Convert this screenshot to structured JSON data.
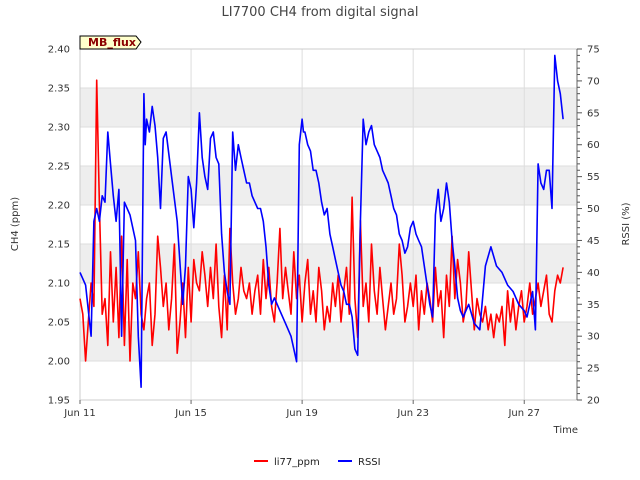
{
  "chart_data": {
    "type": "line",
    "title": "LI7700 CH4 from digital signal",
    "tag": "MB_flux",
    "xlabel": "Time",
    "ylabel_left": "CH4 (ppm)",
    "ylabel_right": "RSSI (%)",
    "x_ticks": [
      "Jun 11",
      "Jun 15",
      "Jun 19",
      "Jun 23",
      "Jun 27"
    ],
    "x_tick_days": [
      11,
      15,
      19,
      23,
      27
    ],
    "xlim": [
      11.0,
      28.9
    ],
    "ylim_left": [
      1.95,
      2.4
    ],
    "ylim_right": [
      20,
      75
    ],
    "y_ticks_left": [
      "1.95",
      "2.00",
      "2.05",
      "2.10",
      "2.15",
      "2.20",
      "2.25",
      "2.30",
      "2.35",
      "2.40"
    ],
    "y_ticks_right": [
      "20",
      "25",
      "30",
      "35",
      "40",
      "45",
      "50",
      "55",
      "60",
      "65",
      "70",
      "75"
    ],
    "grid": true,
    "legend_position": "bottom",
    "series": [
      {
        "name": "li77_ppm",
        "axis": "left",
        "color": "#ff0000",
        "x": [
          11.0,
          11.1,
          11.2,
          11.3,
          11.4,
          11.5,
          11.6,
          11.7,
          11.8,
          11.9,
          12.0,
          12.1,
          12.2,
          12.3,
          12.4,
          12.5,
          12.6,
          12.7,
          12.8,
          12.9,
          13.0,
          13.1,
          13.2,
          13.3,
          13.4,
          13.5,
          13.6,
          13.7,
          13.8,
          13.9,
          14.0,
          14.1,
          14.2,
          14.3,
          14.4,
          14.5,
          14.6,
          14.7,
          14.8,
          14.9,
          15.0,
          15.1,
          15.2,
          15.3,
          15.4,
          15.5,
          15.6,
          15.7,
          15.8,
          15.9,
          16.0,
          16.1,
          16.2,
          16.3,
          16.4,
          16.5,
          16.6,
          16.7,
          16.8,
          16.9,
          17.0,
          17.1,
          17.2,
          17.3,
          17.4,
          17.5,
          17.6,
          17.7,
          17.8,
          17.9,
          18.0,
          18.1,
          18.2,
          18.3,
          18.4,
          18.5,
          18.6,
          18.7,
          18.8,
          18.9,
          19.0,
          19.1,
          19.2,
          19.3,
          19.4,
          19.5,
          19.6,
          19.7,
          19.8,
          19.9,
          20.0,
          20.1,
          20.2,
          20.3,
          20.4,
          20.5,
          20.6,
          20.7,
          20.8,
          20.9,
          21.0,
          21.1,
          21.2,
          21.3,
          21.4,
          21.5,
          21.6,
          21.7,
          21.8,
          21.9,
          22.0,
          22.1,
          22.2,
          22.3,
          22.4,
          22.5,
          22.6,
          22.7,
          22.8,
          22.9,
          23.0,
          23.1,
          23.2,
          23.3,
          23.4,
          23.5,
          23.6,
          23.7,
          23.8,
          23.9,
          24.0,
          24.1,
          24.2,
          24.3,
          24.4,
          24.5,
          24.6,
          24.7,
          24.8,
          24.9,
          25.0,
          25.1,
          25.2,
          25.3,
          25.4,
          25.5,
          25.6,
          25.7,
          25.8,
          25.9,
          26.0,
          26.1,
          26.2,
          26.3,
          26.4,
          26.5,
          26.6,
          26.7,
          26.8,
          26.9,
          27.0,
          27.1,
          27.2,
          27.3,
          27.4,
          27.5,
          27.6,
          27.7,
          27.8,
          27.9,
          28.0,
          28.1,
          28.2,
          28.3,
          28.4
        ],
        "values": [
          2.08,
          2.06,
          2.0,
          2.05,
          2.1,
          2.07,
          2.36,
          2.2,
          2.06,
          2.08,
          2.02,
          2.14,
          2.05,
          2.12,
          2.03,
          2.16,
          2.02,
          2.13,
          2.0,
          2.1,
          2.08,
          2.14,
          2.06,
          2.04,
          2.08,
          2.1,
          2.02,
          2.06,
          2.16,
          2.12,
          2.07,
          2.1,
          2.04,
          2.08,
          2.15,
          2.01,
          2.05,
          2.1,
          2.03,
          2.12,
          2.05,
          2.13,
          2.1,
          2.09,
          2.14,
          2.11,
          2.07,
          2.12,
          2.08,
          2.15,
          2.07,
          2.03,
          2.11,
          2.04,
          2.17,
          2.1,
          2.06,
          2.08,
          2.12,
          2.09,
          2.08,
          2.1,
          2.06,
          2.09,
          2.11,
          2.06,
          2.13,
          2.08,
          2.12,
          2.07,
          2.05,
          2.1,
          2.17,
          2.08,
          2.12,
          2.09,
          2.06,
          2.14,
          2.08,
          2.11,
          2.05,
          2.1,
          2.13,
          2.06,
          2.09,
          2.05,
          2.12,
          2.09,
          2.04,
          2.07,
          2.05,
          2.1,
          2.07,
          2.11,
          2.05,
          2.09,
          2.12,
          2.06,
          2.21,
          2.08,
          2.03,
          2.18,
          2.07,
          2.1,
          2.05,
          2.15,
          2.09,
          2.06,
          2.12,
          2.08,
          2.04,
          2.07,
          2.1,
          2.06,
          2.08,
          2.15,
          2.11,
          2.05,
          2.07,
          2.1,
          2.07,
          2.11,
          2.04,
          2.09,
          2.06,
          2.1,
          2.08,
          2.05,
          2.12,
          2.07,
          2.09,
          2.03,
          2.11,
          2.07,
          2.16,
          2.08,
          2.13,
          2.1,
          2.05,
          2.07,
          2.14,
          2.09,
          2.04,
          2.08,
          2.06,
          2.05,
          2.07,
          2.04,
          2.06,
          2.03,
          2.06,
          2.05,
          2.07,
          2.02,
          2.09,
          2.05,
          2.08,
          2.04,
          2.07,
          2.09,
          2.05,
          2.07,
          2.1,
          2.06,
          2.08,
          2.1,
          2.07,
          2.09,
          2.11,
          2.06,
          2.05,
          2.09,
          2.11,
          2.1,
          2.12
        ]
      },
      {
        "name": "RSSI",
        "axis": "right",
        "color": "#0000ff",
        "x": [
          11.0,
          11.2,
          11.4,
          11.5,
          11.6,
          11.7,
          11.8,
          11.9,
          12.0,
          12.1,
          12.2,
          12.3,
          12.4,
          12.5,
          12.6,
          12.8,
          13.0,
          13.1,
          13.2,
          13.3,
          13.35,
          13.4,
          13.5,
          13.6,
          13.7,
          13.8,
          13.9,
          14.0,
          14.1,
          14.3,
          14.5,
          14.7,
          14.8,
          14.9,
          15.0,
          15.1,
          15.2,
          15.3,
          15.4,
          15.5,
          15.6,
          15.7,
          15.8,
          15.9,
          16.0,
          16.1,
          16.2,
          16.3,
          16.4,
          16.5,
          16.6,
          16.7,
          16.8,
          16.9,
          17.0,
          17.1,
          17.2,
          17.3,
          17.4,
          17.5,
          17.6,
          17.7,
          17.8,
          17.9,
          18.0,
          18.2,
          18.4,
          18.6,
          18.8,
          18.9,
          19.0,
          19.05,
          19.1,
          19.2,
          19.3,
          19.4,
          19.5,
          19.6,
          19.7,
          19.8,
          19.9,
          20.0,
          20.1,
          20.2,
          20.3,
          20.4,
          20.5,
          20.6,
          20.7,
          20.8,
          20.9,
          21.0,
          21.1,
          21.2,
          21.3,
          21.4,
          21.5,
          21.6,
          21.7,
          21.8,
          21.9,
          22.0,
          22.1,
          22.2,
          22.3,
          22.4,
          22.5,
          22.6,
          22.7,
          22.8,
          22.9,
          23.0,
          23.1,
          23.2,
          23.3,
          23.4,
          23.5,
          23.6,
          23.7,
          23.8,
          23.9,
          24.0,
          24.1,
          24.2,
          24.3,
          24.4,
          24.5,
          24.6,
          24.7,
          24.8,
          24.9,
          25.0,
          25.2,
          25.4,
          25.6,
          25.8,
          26.0,
          26.2,
          26.4,
          26.6,
          26.8,
          27.0,
          27.1,
          27.2,
          27.3,
          27.4,
          27.5,
          27.6,
          27.7,
          27.8,
          27.9,
          28.0,
          28.1,
          28.2,
          28.3,
          28.4
        ],
        "values": [
          40,
          38,
          30,
          48,
          50,
          48,
          52,
          51,
          62,
          57,
          52,
          48,
          53,
          30,
          51,
          49,
          45,
          30,
          22,
          68,
          60,
          64,
          62,
          66,
          63,
          58,
          50,
          61,
          62,
          55,
          48,
          35,
          41,
          55,
          53,
          47,
          54,
          65,
          58,
          55,
          53,
          61,
          62,
          58,
          57,
          46,
          40,
          37,
          35,
          62,
          56,
          60,
          58,
          56,
          54,
          54,
          52,
          51,
          50,
          50,
          48,
          44,
          38,
          35,
          36,
          34,
          32,
          30,
          26,
          60,
          64,
          62,
          62,
          60,
          59,
          56,
          56,
          54,
          51,
          49,
          50,
          46,
          44,
          42,
          40,
          38,
          37,
          35,
          35,
          33,
          28,
          27,
          48,
          64,
          60,
          62,
          63,
          60,
          59,
          58,
          56,
          55,
          54,
          52,
          50,
          49,
          46,
          45,
          43,
          44,
          47,
          48,
          46,
          45,
          44,
          41,
          38,
          35,
          33,
          49,
          53,
          48,
          50,
          54,
          51,
          45,
          41,
          36,
          34,
          33,
          34,
          35,
          32,
          31,
          41,
          44,
          41,
          40,
          38,
          37,
          35,
          34,
          33,
          35,
          37,
          31,
          57,
          54,
          53,
          56,
          56,
          50,
          74,
          70,
          68,
          64
        ]
      }
    ]
  },
  "legend": {
    "items": [
      {
        "label": "li77_ppm",
        "color": "#ff0000"
      },
      {
        "label": "RSSI",
        "color": "#0000ff"
      }
    ]
  },
  "style": {
    "band_color": "#eeeeee",
    "grid_color": "#dddddd",
    "tag_bg": "#ffffcc"
  }
}
